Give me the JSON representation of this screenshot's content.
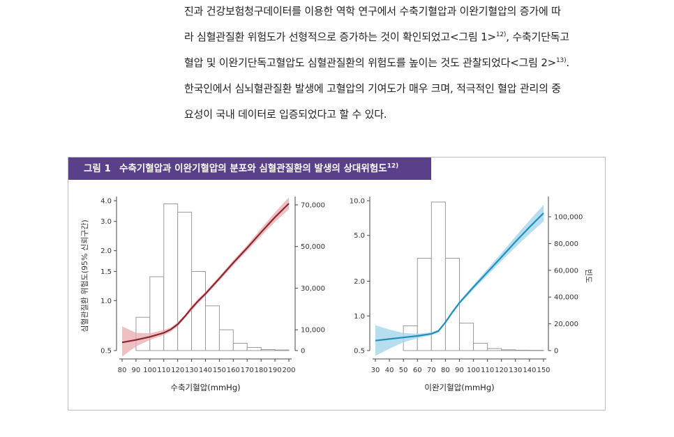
{
  "paragraph": {
    "line1": "진과 건강보험청구데이터를 이용한 역학 연구에서 수축기혈압과 이완기혈압의 증가에 따",
    "line2a": "라 심혈관질환 위험도가 선형적으로 증가하는 것이 확인되었고<그림 1>",
    "line2_ref": "12)",
    "line2b": ", 수축기단독고",
    "line3a": "혈압 및 이완기단독고혈압도 심혈관질환의 위험도를 높이는 것도 관찰되었다<그림 2>",
    "line3_ref": "13)",
    "line3b": ".",
    "line4": "한국인에서 심뇌혈관질환 발생에 고혈압의 기여도가 매우 크며, 적극적인 혈압 관리의 중",
    "line5": "요성이 국내 데이터로 입증되었다고 할 수 있다."
  },
  "figure": {
    "label": "그림 1",
    "title": "수축기혈압과 이완기혈압의 분포와 심혈관질환의 발생의 상대위험도",
    "ref": "12)"
  },
  "chart_data": [
    {
      "type": "bar+line",
      "name": "systolic",
      "xlabel": "수축기혈압(mmHg)",
      "ylabel": "심혈관질환 위험도(95% 신뢰구간)",
      "x_ticks": [
        "80",
        "90",
        "100",
        "110",
        "120",
        "130",
        "140",
        "150",
        "160",
        "170",
        "180",
        "190",
        "200"
      ],
      "xlim": [
        80,
        200
      ],
      "y_left_ticks": [
        "0.5",
        "1.0",
        "1.5",
        "2.0",
        "3.0",
        "4.0"
      ],
      "y_left_scale": "log",
      "ylim_left": [
        0.5,
        4.0
      ],
      "y_right_ticks": [
        "0",
        "10,000",
        "30,000",
        "50,000",
        "70,000"
      ],
      "ylim_right": [
        0,
        72000
      ],
      "histogram": {
        "bin_starts": [
          90,
          100,
          110,
          120,
          130,
          140,
          150,
          160,
          170,
          180,
          190
        ],
        "bin_width": 10,
        "counts": [
          16000,
          35500,
          70500,
          66500,
          38000,
          21500,
          10000,
          3500,
          1500,
          500,
          300
        ]
      },
      "risk_curve": {
        "x": [
          80,
          90,
          100,
          110,
          115,
          120,
          125,
          130,
          135,
          140,
          150,
          160,
          170,
          180,
          190,
          200
        ],
        "rr": [
          0.56,
          0.58,
          0.605,
          0.64,
          0.67,
          0.72,
          0.8,
          0.9,
          1.0,
          1.1,
          1.36,
          1.69,
          2.08,
          2.58,
          3.18,
          3.85
        ],
        "lower": [
          0.46,
          0.53,
          0.58,
          0.62,
          0.65,
          0.7,
          0.78,
          0.87,
          0.97,
          1.07,
          1.32,
          1.63,
          2.0,
          2.45,
          2.98,
          3.55
        ],
        "upper": [
          0.7,
          0.64,
          0.635,
          0.665,
          0.69,
          0.74,
          0.82,
          0.93,
          1.03,
          1.13,
          1.4,
          1.75,
          2.16,
          2.72,
          3.4,
          4.2
        ]
      },
      "line_color": "#8b2630",
      "band_color": "#e9a9ad"
    },
    {
      "type": "bar+line",
      "name": "diastolic",
      "xlabel": "이완기혈압(mmHg)",
      "ylabel": "빈도",
      "x_ticks": [
        "30",
        "40",
        "50",
        "60",
        "70",
        "80",
        "90",
        "100",
        "110",
        "120",
        "130",
        "140",
        "150"
      ],
      "xlim": [
        30,
        150
      ],
      "y_left_ticks": [
        "0.5",
        "1.0",
        "2.0",
        "5.0",
        "10.0"
      ],
      "y_left_scale": "log",
      "ylim_left": [
        0.5,
        10.0
      ],
      "y_right_ticks": [
        "0",
        "20,000",
        "40,000",
        "60,000",
        "80,000",
        "100,000"
      ],
      "ylim_right": [
        0,
        112000
      ],
      "histogram": {
        "bin_starts": [
          50,
          60,
          70,
          80,
          90,
          100,
          110,
          120,
          130,
          140
        ],
        "bin_width": 10,
        "counts": [
          18500,
          69000,
          111000,
          69000,
          20500,
          5500,
          1500,
          600,
          300,
          200
        ]
      },
      "risk_curve": {
        "x": [
          30,
          40,
          50,
          60,
          70,
          75,
          80,
          85,
          90,
          100,
          110,
          120,
          130,
          140,
          150
        ],
        "rr": [
          0.61,
          0.63,
          0.65,
          0.67,
          0.7,
          0.74,
          0.88,
          1.08,
          1.3,
          1.78,
          2.4,
          3.25,
          4.4,
          5.9,
          7.8
        ],
        "lower": [
          0.45,
          0.52,
          0.59,
          0.64,
          0.68,
          0.72,
          0.86,
          1.05,
          1.26,
          1.7,
          2.25,
          3.0,
          3.95,
          5.15,
          6.6
        ],
        "upper": [
          0.83,
          0.76,
          0.71,
          0.7,
          0.72,
          0.76,
          0.9,
          1.11,
          1.34,
          1.86,
          2.56,
          3.52,
          4.9,
          6.75,
          9.2
        ]
      },
      "line_color": "#1f8fc0",
      "band_color": "#9fd3ea"
    }
  ]
}
